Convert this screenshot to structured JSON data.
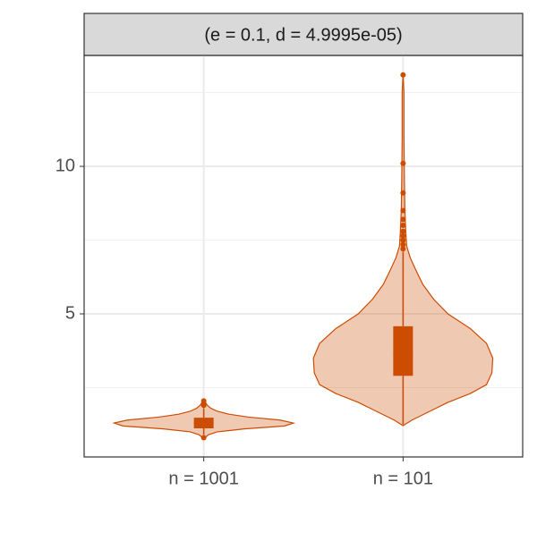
{
  "chart_data": {
    "type": "violin",
    "strip_title": "(e = 0.1, d = 4.9995e-05)",
    "categories": [
      "n = 1001",
      "n = 101"
    ],
    "color": "#cc4c02",
    "groups": [
      {
        "violin": {
          "y": [
            0.76,
            0.9,
            1.0,
            1.1,
            1.2,
            1.3,
            1.4,
            1.5,
            1.6,
            1.7,
            1.8,
            1.9,
            2.0,
            2.09
          ],
          "width": [
            0,
            0.05,
            0.15,
            0.45,
            0.9,
            1.0,
            0.85,
            0.5,
            0.28,
            0.15,
            0.08,
            0.04,
            0.02,
            0
          ]
        },
        "box": {
          "lower": 0.9,
          "q1": 1.12,
          "median": 1.3,
          "q3": 1.48,
          "upper": 1.8
        },
        "outliers": [
          0.8,
          1.9,
          1.95,
          2.05
        ]
      },
      {
        "violin": {
          "y": [
            1.21,
            1.4,
            1.7,
            2.0,
            2.3,
            2.6,
            3.0,
            3.5,
            4.0,
            4.5,
            5.0,
            5.5,
            6.0,
            6.5,
            6.9,
            7.3,
            7.8,
            8.5,
            9.5,
            11.0,
            12.5,
            13.15
          ],
          "width": [
            0,
            0.1,
            0.3,
            0.5,
            0.75,
            0.93,
            0.99,
            1.0,
            0.93,
            0.75,
            0.5,
            0.34,
            0.22,
            0.14,
            0.08,
            0.04,
            0.03,
            0.02,
            0.015,
            0.01,
            0.01,
            0
          ]
        },
        "box": {
          "lower": 1.25,
          "q1": 2.9,
          "median": 3.6,
          "q3": 4.58,
          "upper": 7.1
        },
        "outliers": [
          7.2,
          7.35,
          7.5,
          7.65,
          7.8,
          8.0,
          8.2,
          8.5,
          9.1,
          10.1,
          13.1
        ]
      }
    ],
    "ylim": [
      0.15,
      13.76
    ],
    "yticks": [
      5,
      10
    ],
    "yminor": [
      2.5,
      7.5,
      12.5
    ],
    "grid": true
  }
}
